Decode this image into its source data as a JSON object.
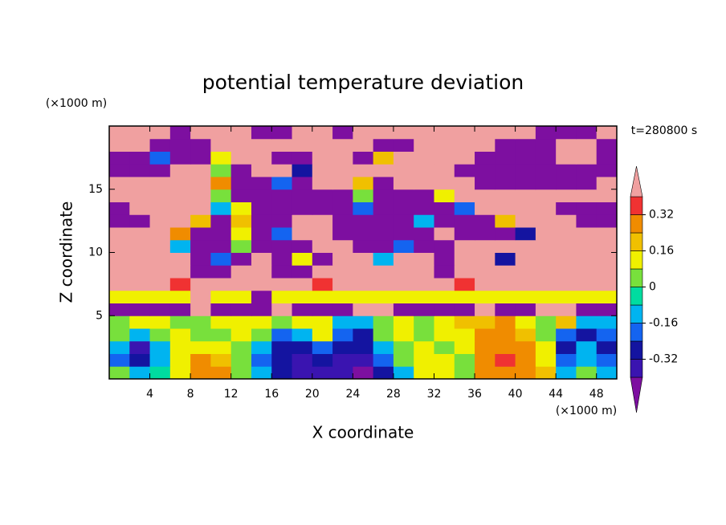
{
  "chart_data": {
    "type": "contour",
    "title": "potential temperature deviation",
    "x_label": "X coordinate",
    "y_label": "Z coordinate",
    "x_unit": "(×1000 m)",
    "y_unit": "(×1000 m)",
    "time_label": "t=280800 s",
    "xlim": [
      0,
      50
    ],
    "ylim": [
      0,
      20
    ],
    "xticks": [
      4,
      8,
      12,
      16,
      20,
      24,
      28,
      32,
      36,
      40,
      44,
      48
    ],
    "yticks": [
      5,
      10,
      15
    ],
    "x": [
      1,
      3,
      5,
      7,
      9,
      11,
      13,
      15,
      17,
      19,
      21,
      23,
      25,
      27,
      29,
      31,
      33,
      35,
      37,
      39,
      41,
      43,
      45,
      47,
      49
    ],
    "y": [
      0.5,
      1.5,
      2.5,
      3.5,
      4.5,
      5.5,
      6.5,
      7.5,
      8.5,
      9.5,
      10.5,
      11.5,
      12.5,
      13.5,
      14.5,
      15.5,
      16.5,
      17.5,
      18.5,
      19.5
    ],
    "levels": [
      -0.4,
      -0.32,
      -0.24,
      -0.16,
      -0.08,
      0,
      0.08,
      0.16,
      0.24,
      0.32,
      0.4
    ],
    "colors": [
      "#7d0fa0",
      "#3a14b0",
      "#1414a0",
      "#1464f0",
      "#00b4f0",
      "#00dca0",
      "#78e03c",
      "#f0f000",
      "#f0c000",
      "#f08c00",
      "#f03232",
      "#f0a0a0"
    ],
    "colorbar_ticks": [
      -0.32,
      -0.16,
      0,
      0.16,
      0.32
    ],
    "z": [
      [
        0.0,
        -0.1,
        -0.05,
        0.1,
        0.25,
        0.3,
        0.05,
        -0.1,
        -0.3,
        -0.35,
        -0.35,
        -0.4,
        -0.45,
        -0.3,
        -0.1,
        0.1,
        0.15,
        0.0,
        0.25,
        0.3,
        0.3,
        0.2,
        -0.1,
        0.05,
        -0.15
      ],
      [
        -0.2,
        -0.3,
        -0.1,
        0.15,
        0.25,
        0.2,
        0.0,
        -0.2,
        -0.3,
        -0.35,
        -0.3,
        -0.4,
        -0.35,
        -0.2,
        0.0,
        0.15,
        0.1,
        0.05,
        0.3,
        0.35,
        0.3,
        0.15,
        -0.2,
        -0.1,
        -0.2
      ],
      [
        -0.1,
        -0.35,
        -0.15,
        0.1,
        0.15,
        0.1,
        0.05,
        -0.15,
        -0.25,
        -0.3,
        -0.2,
        -0.3,
        -0.3,
        -0.1,
        0.05,
        0.1,
        0.05,
        0.1,
        0.3,
        0.3,
        0.25,
        0.1,
        -0.25,
        -0.15,
        -0.3
      ],
      [
        0.05,
        -0.1,
        0.0,
        0.1,
        0.05,
        0.05,
        0.1,
        0.0,
        -0.2,
        -0.1,
        0.1,
        -0.2,
        -0.25,
        0.0,
        0.1,
        0.0,
        0.1,
        0.15,
        0.25,
        0.3,
        0.2,
        0.05,
        -0.2,
        -0.25,
        -0.2
      ],
      [
        0.05,
        0.1,
        0.1,
        0.05,
        0.0,
        0.1,
        0.15,
        0.1,
        0.0,
        0.1,
        0.15,
        -0.1,
        -0.1,
        0.05,
        0.15,
        0.05,
        0.1,
        0.2,
        0.2,
        0.25,
        0.1,
        0.05,
        0.2,
        -0.1,
        -0.1
      ],
      [
        -0.45,
        -0.45,
        -0.45,
        -0.45,
        0.45,
        -0.45,
        -0.45,
        -0.45,
        0.45,
        -0.45,
        -0.45,
        -0.45,
        0.45,
        0.45,
        -0.45,
        -0.45,
        -0.45,
        -0.45,
        0.45,
        -0.45,
        -0.45,
        0.45,
        0.45,
        -0.45,
        -0.45
      ],
      [
        0.12,
        0.12,
        0.12,
        0.12,
        0.45,
        0.12,
        0.12,
        -0.45,
        0.12,
        0.12,
        0.12,
        0.12,
        0.12,
        0.12,
        0.12,
        0.12,
        0.12,
        0.12,
        0.12,
        0.12,
        0.12,
        0.12,
        0.12,
        0.12,
        0.12
      ],
      [
        0.45,
        0.45,
        0.45,
        0.36,
        0.45,
        0.45,
        0.45,
        0.45,
        0.45,
        0.45,
        0.36,
        0.45,
        0.45,
        0.45,
        0.45,
        0.45,
        0.45,
        0.36,
        0.45,
        0.45,
        0.45,
        0.45,
        0.45,
        0.45,
        0.45
      ],
      [
        0.45,
        0.45,
        0.45,
        0.45,
        -0.45,
        -0.45,
        0.45,
        0.45,
        -0.45,
        -0.45,
        0.45,
        0.45,
        0.45,
        0.45,
        0.45,
        0.45,
        -0.45,
        0.45,
        0.45,
        0.45,
        0.45,
        0.45,
        0.45,
        0.45,
        0.45
      ],
      [
        0.45,
        0.45,
        0.45,
        0.45,
        -0.45,
        -0.2,
        -0.45,
        0.45,
        -0.45,
        0.1,
        -0.45,
        0.45,
        0.45,
        -0.1,
        0.45,
        0.45,
        -0.45,
        0.45,
        0.45,
        -0.3,
        0.45,
        0.45,
        0.45,
        0.45,
        0.45
      ],
      [
        0.45,
        0.45,
        0.45,
        -0.1,
        -0.45,
        -0.45,
        0.0,
        -0.45,
        -0.45,
        -0.45,
        0.45,
        0.45,
        -0.45,
        -0.45,
        -0.2,
        -0.45,
        -0.45,
        0.45,
        0.45,
        0.45,
        0.45,
        0.45,
        0.45,
        0.45,
        0.45
      ],
      [
        0.45,
        0.45,
        0.45,
        0.3,
        -0.45,
        -0.45,
        0.1,
        -0.45,
        -0.2,
        0.45,
        0.45,
        -0.45,
        -0.45,
        -0.45,
        -0.45,
        -0.45,
        0.45,
        -0.45,
        -0.45,
        -0.45,
        -0.3,
        0.45,
        0.45,
        0.45,
        0.45
      ],
      [
        -0.45,
        -0.45,
        0.45,
        0.45,
        0.2,
        -0.45,
        0.2,
        -0.45,
        -0.45,
        0.45,
        0.45,
        -0.45,
        -0.45,
        -0.45,
        -0.45,
        -0.1,
        -0.45,
        -0.45,
        -0.45,
        0.2,
        0.45,
        0.45,
        0.45,
        -0.45,
        -0.45
      ],
      [
        -0.45,
        0.45,
        0.45,
        0.45,
        0.45,
        -0.1,
        0.1,
        -0.45,
        -0.45,
        -0.45,
        -0.45,
        -0.45,
        -0.2,
        -0.45,
        -0.45,
        -0.45,
        -0.45,
        -0.2,
        0.45,
        0.45,
        0.45,
        0.45,
        -0.45,
        -0.45,
        -0.45
      ],
      [
        0.45,
        0.45,
        0.45,
        0.45,
        0.45,
        0.0,
        -0.45,
        -0.45,
        -0.45,
        -0.45,
        -0.45,
        -0.45,
        0.0,
        -0.45,
        -0.45,
        -0.45,
        0.1,
        0.45,
        0.45,
        0.45,
        0.45,
        0.45,
        0.45,
        0.45,
        0.45
      ],
      [
        0.45,
        0.45,
        0.45,
        0.45,
        0.45,
        0.3,
        -0.45,
        -0.45,
        -0.2,
        -0.45,
        0.45,
        0.45,
        0.2,
        -0.45,
        0.45,
        0.45,
        0.45,
        0.45,
        -0.45,
        -0.45,
        -0.45,
        -0.45,
        -0.45,
        -0.45,
        0.45
      ],
      [
        -0.45,
        -0.45,
        -0.45,
        0.45,
        0.45,
        0.0,
        -0.45,
        0.45,
        0.45,
        -0.3,
        0.45,
        0.45,
        0.45,
        0.45,
        0.45,
        0.45,
        0.45,
        -0.45,
        -0.45,
        -0.45,
        -0.45,
        -0.45,
        -0.45,
        -0.45,
        -0.45
      ],
      [
        -0.45,
        -0.45,
        -0.2,
        -0.45,
        -0.45,
        0.1,
        0.45,
        0.45,
        -0.45,
        -0.45,
        0.45,
        0.45,
        -0.45,
        0.2,
        0.45,
        0.45,
        0.45,
        0.45,
        -0.45,
        -0.45,
        -0.45,
        -0.45,
        0.45,
        0.45,
        -0.45
      ],
      [
        0.45,
        0.45,
        -0.45,
        -0.45,
        -0.45,
        0.45,
        0.45,
        0.45,
        0.45,
        0.45,
        0.45,
        0.45,
        0.45,
        -0.45,
        -0.45,
        0.45,
        0.45,
        0.45,
        0.45,
        -0.45,
        -0.45,
        -0.45,
        0.45,
        0.45,
        -0.45
      ],
      [
        0.45,
        0.45,
        0.45,
        -0.45,
        0.45,
        0.45,
        0.45,
        -0.45,
        -0.45,
        0.45,
        0.45,
        -0.45,
        0.45,
        0.45,
        0.45,
        0.45,
        0.45,
        0.45,
        0.45,
        0.45,
        0.45,
        -0.45,
        -0.45,
        -0.45,
        0.45
      ]
    ]
  }
}
